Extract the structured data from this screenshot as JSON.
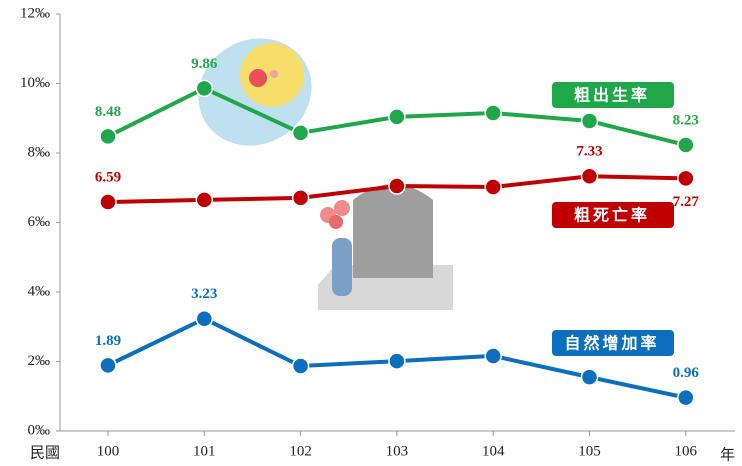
{
  "chart_data": {
    "type": "line",
    "categories": [
      "100",
      "101",
      "102",
      "103",
      "104",
      "105",
      "106"
    ],
    "x_label_left": "民國",
    "x_label_right": "年",
    "ylim": [
      0,
      12
    ],
    "yticks": [
      {
        "value": 0,
        "label": "0‰"
      },
      {
        "value": 2,
        "label": "2‰"
      },
      {
        "value": 4,
        "label": "4‰"
      },
      {
        "value": 6,
        "label": "6‰"
      },
      {
        "value": 8,
        "label": "8‰"
      },
      {
        "value": 10,
        "label": "10‰"
      },
      {
        "value": 12,
        "label": "12‰"
      }
    ],
    "grid": false,
    "series": [
      {
        "name": "粗出生率",
        "color": "#1fa74a",
        "values": [
          8.48,
          9.86,
          8.58,
          9.04,
          9.15,
          8.92,
          8.23
        ],
        "value_labels": [
          "8.48",
          "9.86",
          null,
          null,
          null,
          null,
          "8.23"
        ]
      },
      {
        "name": "粗死亡率",
        "color": "#c00000",
        "values": [
          6.59,
          6.65,
          6.71,
          7.05,
          7.02,
          7.33,
          7.27
        ],
        "value_labels": [
          "6.59",
          null,
          null,
          null,
          null,
          "7.33",
          "7.27"
        ]
      },
      {
        "name": "自然增加率",
        "color": "#0b6fbd",
        "values": [
          1.89,
          3.23,
          1.87,
          2.01,
          2.16,
          1.55,
          0.96
        ],
        "value_labels": [
          "1.89",
          "3.23",
          null,
          null,
          null,
          null,
          "0.96"
        ]
      }
    ]
  }
}
